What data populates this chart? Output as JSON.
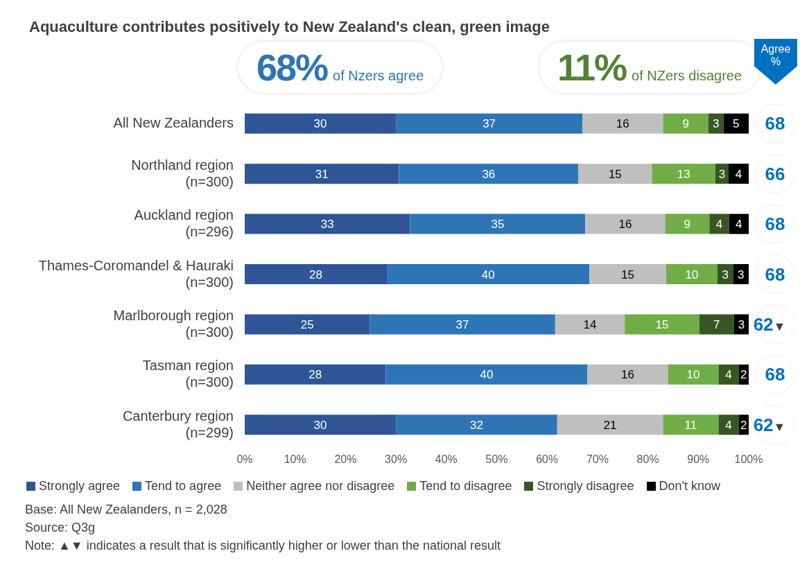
{
  "chart_data": {
    "type": "bar",
    "orientation": "horizontal",
    "stacked": true,
    "title": "Aquaculture contributes positively to New Zealand's clean, green image",
    "categories": [
      "All New Zealanders",
      "Northland region (n=300)",
      "Auckland region (n=296)",
      "Thames-Coromandel & Hauraki (n=300)",
      "Marlborough region (n=300)",
      "Tasman region (n=300)",
      "Canterbury region (n=299)"
    ],
    "series": [
      {
        "name": "Strongly agree",
        "color": "#2f5597",
        "values": [
          30,
          30.6,
          32.8,
          28.2,
          24.8,
          28,
          30
        ],
        "value_labels": [
          "30",
          "31",
          "33",
          "28",
          "25",
          "28",
          "30"
        ]
      },
      {
        "name": "Tend to agree",
        "color": "#2e75b6",
        "values": [
          37,
          35.6,
          34.8,
          40.2,
          36.8,
          40,
          32
        ],
        "value_labels": [
          "37",
          "36",
          "35",
          "40",
          "37",
          "40",
          "32"
        ]
      },
      {
        "name": "Neither agree nor disagree",
        "color": "#bfbfbf",
        "values": [
          16,
          14.6,
          15.8,
          15.2,
          13.8,
          16,
          21
        ],
        "value_labels": [
          "16",
          "15",
          "16",
          "15",
          "14",
          "16",
          "21"
        ]
      },
      {
        "name": "Tend to disagree",
        "color": "#70ad47",
        "values": [
          9,
          12.6,
          8.8,
          10.2,
          14.8,
          10,
          11
        ],
        "value_labels": [
          "9",
          "13",
          "9",
          "10",
          "15",
          "10",
          "11"
        ]
      },
      {
        "name": "Strongly disagree",
        "color": "#375623",
        "values": [
          3,
          2.6,
          3.9,
          3.1,
          6.9,
          4,
          4
        ],
        "value_labels": [
          "3",
          "3",
          "4",
          "3",
          "7",
          "4",
          "4"
        ]
      },
      {
        "name": "Don't know",
        "color": "#000000",
        "values": [
          5,
          4,
          3.9,
          3.1,
          2.9,
          2,
          2
        ],
        "value_labels": [
          "5",
          "4",
          "4",
          "3",
          "3",
          "2",
          "2"
        ]
      }
    ],
    "xlim": [
      0,
      100
    ],
    "xticks": [
      {
        "value": 0,
        "label": "0%"
      },
      {
        "value": 10,
        "label": "10%"
      },
      {
        "value": 20,
        "label": "20%"
      },
      {
        "value": 30,
        "label": "30%"
      },
      {
        "value": 40,
        "label": "40%"
      },
      {
        "value": 50,
        "label": "50%"
      },
      {
        "value": 60,
        "label": "60%"
      },
      {
        "value": 70,
        "label": "70%"
      },
      {
        "value": 80,
        "label": "80%"
      },
      {
        "value": 90,
        "label": "90%"
      },
      {
        "value": 100,
        "label": "100%"
      }
    ],
    "legend": "bottom",
    "annotations": [
      "68%",
      "of Nzers agree",
      "11%",
      "of NZers disagree",
      "Agree %",
      "68",
      "66",
      "68",
      "68",
      "62▼",
      "68",
      "62▼",
      "Base: All New Zealanders, n = 2,028",
      "Source: Q3g",
      "Note: ▲▼ indicates a result that is significantly higher or lower than the national result"
    ]
  }
}
